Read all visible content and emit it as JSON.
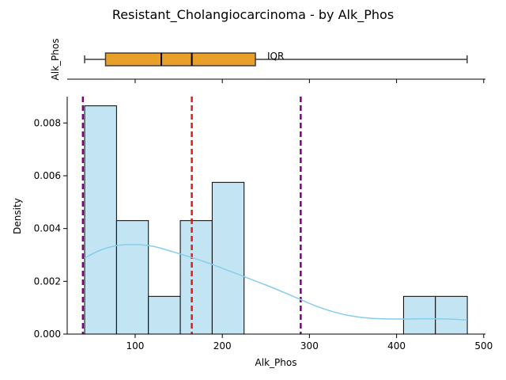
{
  "title": "Resistant_Cholangiocarcinoma - by Alk_Phos",
  "chart_data": [
    {
      "type": "boxplot",
      "ylabel": "Alk_Phos",
      "xlim": [
        22,
        502
      ],
      "box": {
        "whisker_low": 42,
        "q1": 66,
        "median": 130,
        "mean": 165,
        "q3": 238,
        "whisker_high": 481,
        "color": "#e8a02a"
      },
      "annotation": "IQR"
    },
    {
      "type": "histogram",
      "xlabel": "Alk_Phos",
      "ylabel": "Density",
      "xlim": [
        22,
        502
      ],
      "ylim": [
        0,
        0.009
      ],
      "xticks": [
        100,
        200,
        300,
        400,
        500
      ],
      "yticks": [
        0.0,
        0.002,
        0.004,
        0.006,
        0.008
      ],
      "bin_edges": [
        42,
        78.6,
        115.2,
        151.8,
        188.4,
        225,
        261.6,
        298.2,
        334.8,
        371.4,
        408,
        444.6,
        481.2
      ],
      "densities": [
        0.00865,
        0.0043,
        0.00143,
        0.0043,
        0.00575,
        0,
        0,
        0,
        0,
        0,
        0.00143,
        0.00143
      ],
      "bar_color": "#c3e4f3",
      "kde": {
        "color": "#87ceeb",
        "x": [
          42,
          60,
          80,
          100,
          120,
          140,
          165,
          190,
          220,
          250,
          280,
          310,
          340,
          370,
          400,
          430,
          460,
          481
        ],
        "y": [
          0.00288,
          0.00318,
          0.00336,
          0.00339,
          0.00333,
          0.00315,
          0.0029,
          0.00262,
          0.00224,
          0.00186,
          0.00145,
          0.00103,
          0.00074,
          0.0006,
          0.00057,
          0.00058,
          0.00057,
          0.00053
        ]
      },
      "vlines": [
        {
          "x": 40,
          "color": "#800080"
        },
        {
          "x": 165,
          "color": "#e31a1c"
        },
        {
          "x": 290,
          "color": "#800080"
        }
      ]
    }
  ]
}
